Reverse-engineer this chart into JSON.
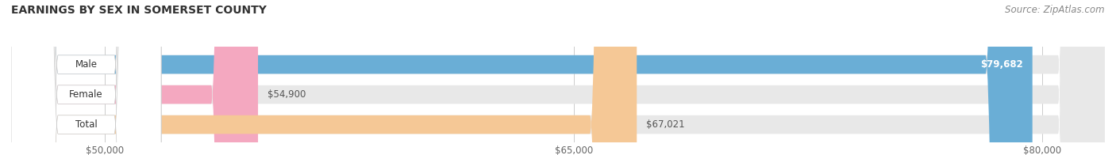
{
  "title": "EARNINGS BY SEX IN SOMERSET COUNTY",
  "source": "Source: ZipAtlas.com",
  "categories": [
    "Male",
    "Female",
    "Total"
  ],
  "values": [
    79682,
    54900,
    67021
  ],
  "bar_colors": [
    "#6aaed6",
    "#f4a8c0",
    "#f5c896"
  ],
  "bar_bg_color": "#e8e8e8",
  "xlim": [
    47000,
    82000
  ],
  "xticks": [
    50000,
    65000,
    80000
  ],
  "xtick_labels": [
    "$50,000",
    "$65,000",
    "$80,000"
  ],
  "value_labels": [
    "$79,682",
    "$54,900",
    "$67,021"
  ],
  "title_fontsize": 10,
  "source_fontsize": 8.5,
  "bar_label_fontsize": 8.5,
  "value_fontsize": 8.5,
  "figsize": [
    14.06,
    1.96
  ],
  "dpi": 100
}
